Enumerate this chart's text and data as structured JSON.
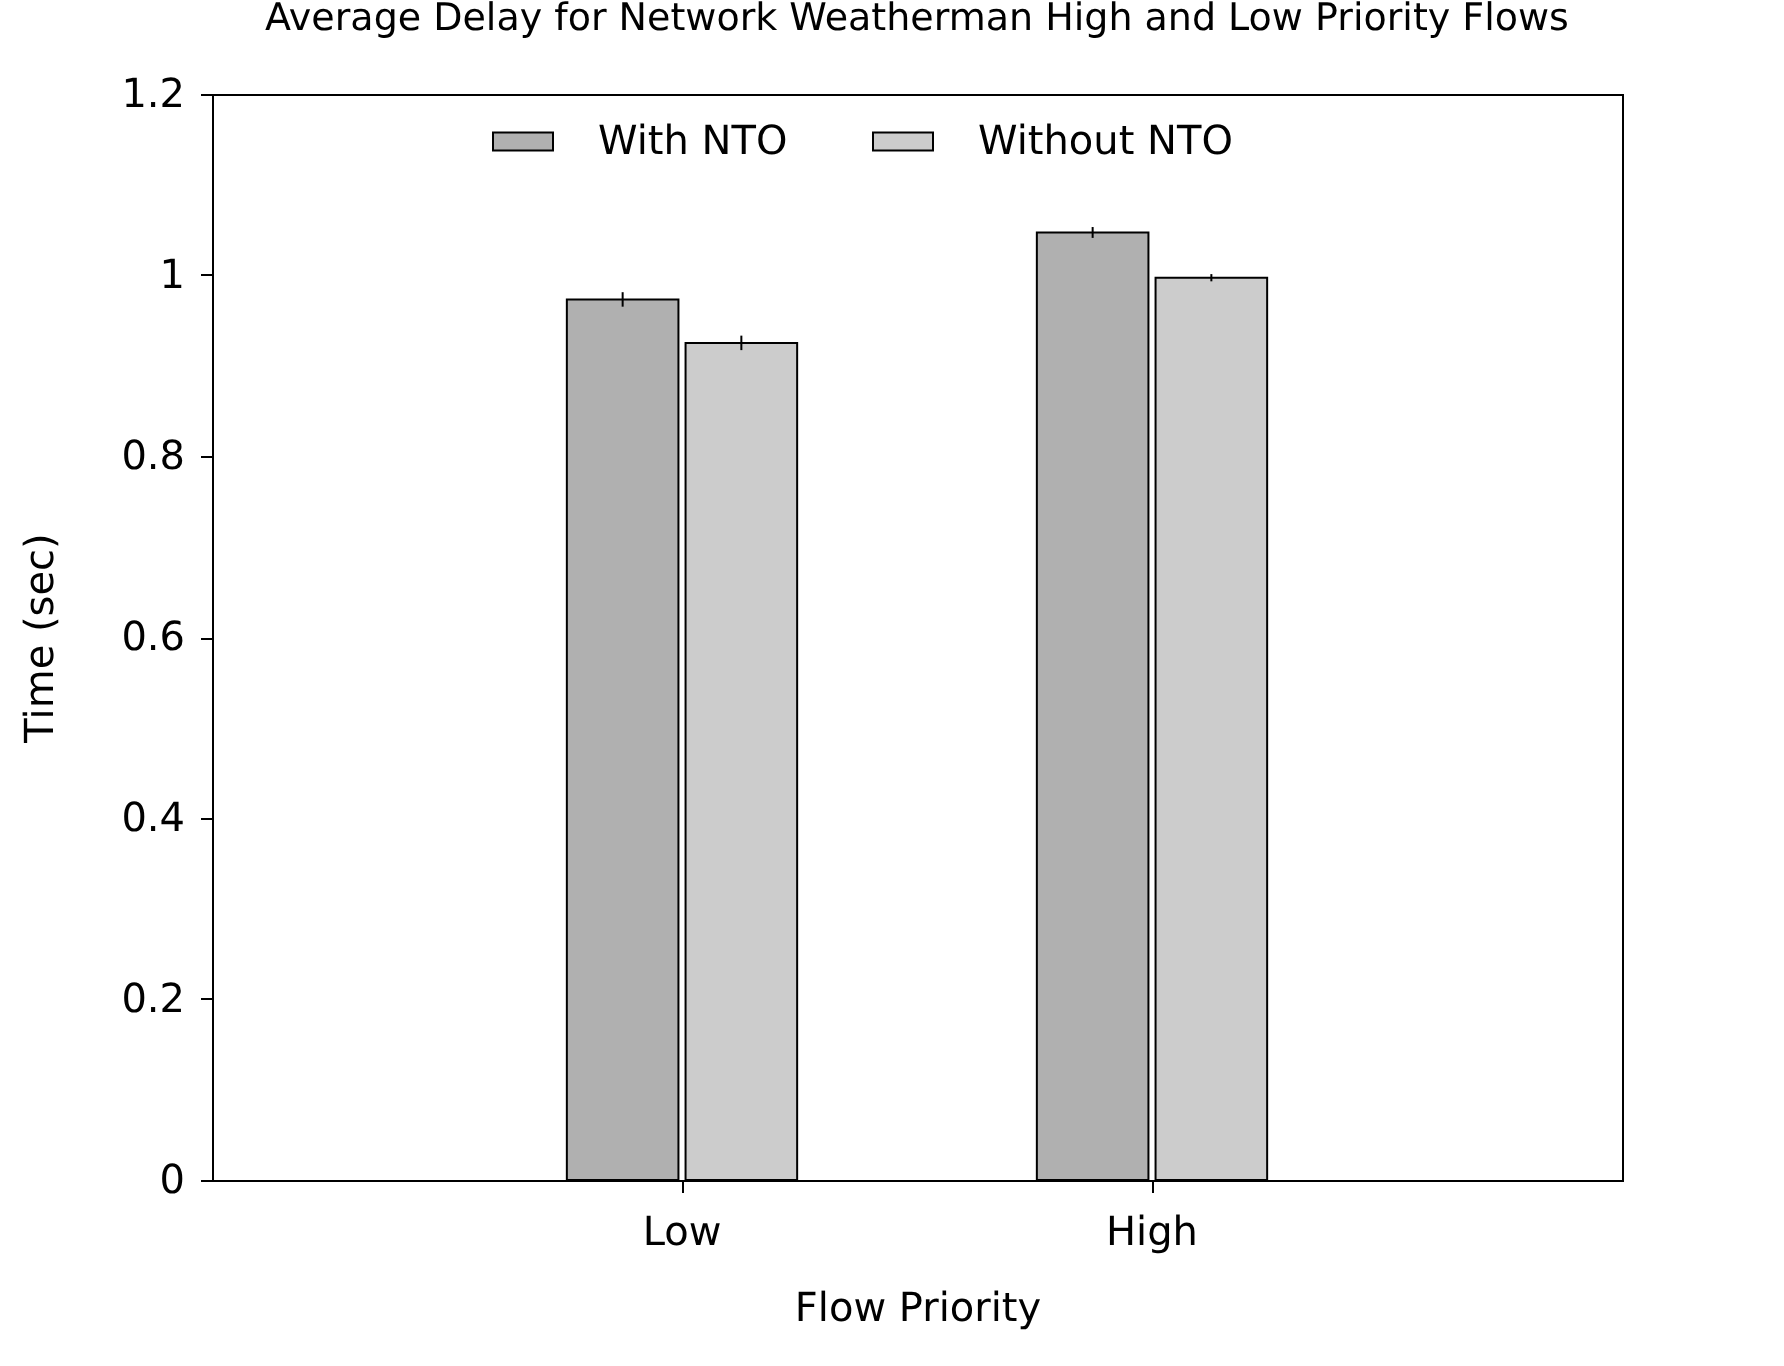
{
  "chart_data": {
    "type": "bar",
    "title": "Average Delay for Network Weatherman High and Low Priority Flows",
    "xlabel": "Flow Priority",
    "ylabel": "Time (sec)",
    "categories": [
      "Low",
      "High"
    ],
    "series": [
      {
        "name": "With NTO",
        "color": "#b0b0b0",
        "values": [
          0.973,
          1.047
        ],
        "errors": [
          0.008,
          0.006
        ]
      },
      {
        "name": "Without NTO",
        "color": "#cccccc",
        "values": [
          0.925,
          0.997
        ],
        "errors": [
          0.008,
          0.004
        ]
      }
    ],
    "ylim": [
      0,
      1.2
    ],
    "yticks": [
      0,
      0.2,
      0.4,
      0.6,
      0.8,
      1,
      1.2
    ],
    "legend": "top"
  }
}
